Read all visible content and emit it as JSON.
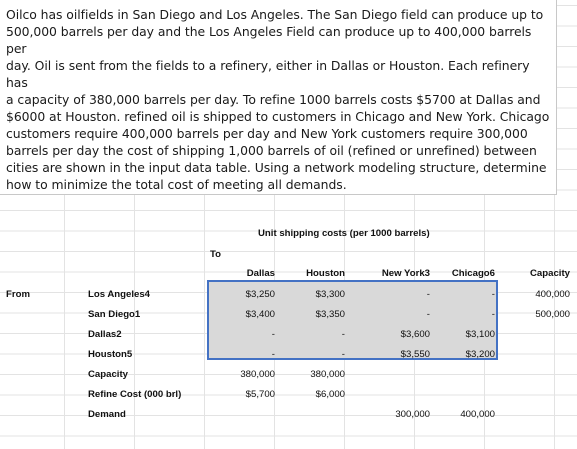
{
  "problem": {
    "lines": [
      "Oilco  has oilfields in San Diego and Los Angeles.   The San Diego field can produce up to",
      "500,000 barrels per day and the Los Angeles Field can produce up to 400,000 barrels per",
      "day. Oil is sent from the fields to a refinery, either in Dallas or Houston. Each refinery has",
      "a capacity of 380,000 barrels per day. To refine 1000 barrels costs $5700 at Dallas and",
      "$6000 at Houston. refined oil is shipped to customers in Chicago and New York. Chicago",
      "customers require 400,000 barrels per day and New York customers require 300,000",
      "barrels per day the cost of shipping 1,000 barrels of oil (refined or unrefined) between",
      "cities are shown in the input data table.  Using a network modeling structure,  determine",
      "how to minimize the total cost of meeting all demands."
    ]
  },
  "table": {
    "title": "Unit shipping costs (per 1000 barrels)",
    "to_label": "To",
    "from_label": "From",
    "columns": [
      "Dallas",
      "Houston",
      "New York3",
      "Chicago6"
    ],
    "capacity_header": "Capacity",
    "rows": [
      {
        "label": "Los Angeles4",
        "cells": [
          "$3,250",
          "$3,300",
          "-",
          "-"
        ],
        "capacity": "400,000"
      },
      {
        "label": "San Diego1",
        "cells": [
          "$3,400",
          "$3,350",
          "-",
          "-"
        ],
        "capacity": "500,000"
      },
      {
        "label": "Dallas2",
        "cells": [
          "-",
          "-",
          "$3,600",
          "$3,100"
        ],
        "capacity": ""
      },
      {
        "label": "Houston5",
        "cells": [
          "-",
          "-",
          "$3,550",
          "$3,200"
        ],
        "capacity": ""
      }
    ],
    "capacity_row": {
      "label": "Capacity",
      "dallas": "380,000",
      "houston": "380,000"
    },
    "refine_row": {
      "label": "Refine Cost (000 brl)",
      "dallas": "$5,700",
      "houston": "$6,000"
    },
    "demand_row": {
      "label": "Demand",
      "newyork": "300,000",
      "chicago": "400,000"
    }
  }
}
